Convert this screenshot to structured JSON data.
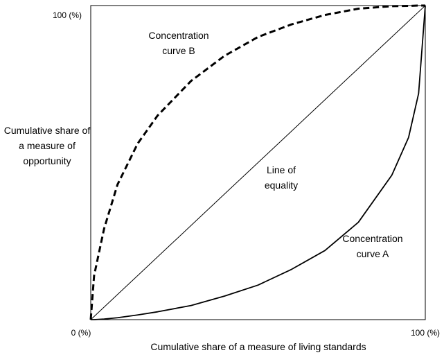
{
  "chart_data": {
    "type": "line",
    "x_label": "Cumulative share of a measure of living standards",
    "y_label": "Cumulative share of a measure of opportunity",
    "x": [
      0,
      1,
      4,
      8,
      14,
      20,
      30,
      40,
      50,
      60,
      70,
      80,
      90,
      95,
      98,
      100
    ],
    "series": [
      {
        "name": "Concentration curve B",
        "color": "#000000",
        "dashed": true,
        "values": [
          0,
          14,
          29,
          43,
          56,
          65,
          76,
          84,
          90,
          94,
          97,
          99,
          99.8,
          99.9,
          100,
          100
        ]
      },
      {
        "name": "Line of equality",
        "color": "#000000",
        "dashed": false,
        "values": [
          0,
          1,
          4,
          8,
          14,
          20,
          30,
          40,
          50,
          60,
          70,
          80,
          90,
          95,
          98,
          100
        ]
      },
      {
        "name": "Concentration curve A",
        "color": "#000000",
        "dashed": false,
        "values": [
          0,
          0,
          0.2,
          0.6,
          1.5,
          2.5,
          4.5,
          7.5,
          11,
          16,
          22,
          31,
          46,
          58,
          72,
          100
        ]
      }
    ],
    "xlim": [
      0,
      100
    ],
    "ylim": [
      0,
      100
    ],
    "xticks": [
      {
        "value": 0,
        "label": "0 (%)"
      },
      {
        "value": 100,
        "label": "100 (%)"
      }
    ],
    "yticks": [
      {
        "value": 100,
        "label": "100 (%)"
      }
    ]
  }
}
